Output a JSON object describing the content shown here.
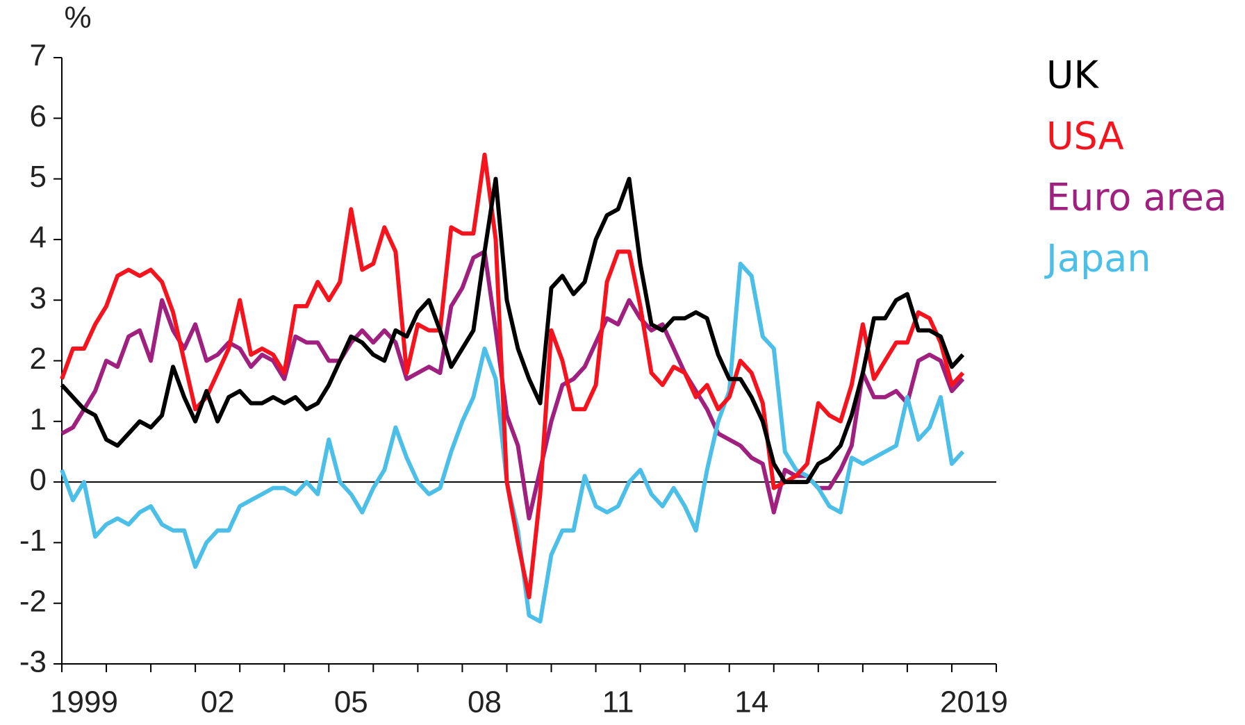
{
  "chart_data": {
    "type": "line",
    "y_unit": "%",
    "x": [
      1999,
      1999.25,
      1999.5,
      1999.75,
      2000,
      2000.25,
      2000.5,
      2000.75,
      2001,
      2001.25,
      2001.5,
      2001.75,
      2002,
      2002.25,
      2002.5,
      2002.75,
      2003,
      2003.25,
      2003.5,
      2003.75,
      2004,
      2004.25,
      2004.5,
      2004.75,
      2005,
      2005.25,
      2005.5,
      2005.75,
      2006,
      2006.25,
      2006.5,
      2006.75,
      2007,
      2007.25,
      2007.5,
      2007.75,
      2008,
      2008.25,
      2008.5,
      2008.75,
      2009,
      2009.25,
      2009.5,
      2009.75,
      2010,
      2010.25,
      2010.5,
      2010.75,
      2011,
      2011.25,
      2011.5,
      2011.75,
      2012,
      2012.25,
      2012.5,
      2012.75,
      2013,
      2013.25,
      2013.5,
      2013.75,
      2014,
      2014.25,
      2014.5,
      2014.75,
      2015,
      2015.25,
      2015.5,
      2015.75,
      2016,
      2016.25,
      2016.5,
      2016.75,
      2017,
      2017.25,
      2017.5,
      2017.75,
      2018,
      2018.25,
      2018.5,
      2018.75,
      2019,
      2019.25
    ],
    "series": [
      {
        "name": "UK",
        "color": "#000000",
        "values": [
          1.6,
          1.4,
          1.2,
          1.1,
          0.7,
          0.6,
          0.8,
          1.0,
          0.9,
          1.1,
          1.9,
          1.4,
          1.0,
          1.5,
          1.0,
          1.4,
          1.5,
          1.3,
          1.3,
          1.4,
          1.3,
          1.4,
          1.2,
          1.3,
          1.6,
          2.0,
          2.4,
          2.3,
          2.1,
          2.0,
          2.5,
          2.4,
          2.8,
          3.0,
          2.5,
          1.9,
          2.2,
          2.5,
          3.8,
          5.0,
          3.0,
          2.2,
          1.7,
          1.3,
          3.2,
          3.4,
          3.1,
          3.3,
          4.0,
          4.4,
          4.5,
          5.0,
          3.6,
          2.6,
          2.5,
          2.7,
          2.7,
          2.8,
          2.7,
          2.1,
          1.7,
          1.7,
          1.4,
          1.0,
          0.3,
          0.0,
          0.0,
          0.0,
          0.3,
          0.4,
          0.6,
          1.1,
          1.8,
          2.7,
          2.7,
          3.0,
          3.1,
          2.5,
          2.5,
          2.4,
          1.9,
          2.1
        ]
      },
      {
        "name": "USA",
        "color": "#f5141e",
        "values": [
          1.7,
          2.2,
          2.2,
          2.6,
          2.9,
          3.4,
          3.5,
          3.4,
          3.5,
          3.3,
          2.8,
          2.0,
          1.2,
          1.4,
          1.8,
          2.2,
          3.0,
          2.1,
          2.2,
          2.1,
          1.8,
          2.9,
          2.9,
          3.3,
          3.0,
          3.3,
          4.5,
          3.5,
          3.6,
          4.2,
          3.8,
          1.8,
          2.6,
          2.5,
          2.5,
          4.2,
          4.1,
          4.1,
          5.4,
          4.0,
          0.0,
          -1.0,
          -1.9,
          -0.2,
          2.5,
          2.0,
          1.2,
          1.2,
          1.6,
          3.3,
          3.8,
          3.8,
          2.9,
          1.8,
          1.6,
          1.9,
          1.8,
          1.4,
          1.6,
          1.2,
          1.4,
          2.0,
          1.8,
          1.3,
          -0.1,
          0.0,
          0.1,
          0.3,
          1.3,
          1.1,
          1.0,
          1.6,
          2.6,
          1.7,
          2.0,
          2.3,
          2.3,
          2.8,
          2.7,
          2.3,
          1.6,
          1.8
        ]
      },
      {
        "name": "Euro area",
        "color": "#a0207f",
        "values": [
          0.8,
          0.9,
          1.2,
          1.5,
          2.0,
          1.9,
          2.4,
          2.5,
          2.0,
          3.0,
          2.5,
          2.2,
          2.6,
          2.0,
          2.1,
          2.3,
          2.2,
          1.9,
          2.1,
          2.0,
          1.7,
          2.4,
          2.3,
          2.3,
          2.0,
          2.0,
          2.3,
          2.5,
          2.3,
          2.5,
          2.3,
          1.7,
          1.8,
          1.9,
          1.8,
          2.9,
          3.2,
          3.7,
          3.8,
          2.5,
          1.1,
          0.6,
          -0.6,
          0.2,
          1.0,
          1.6,
          1.7,
          1.9,
          2.3,
          2.7,
          2.6,
          3.0,
          2.7,
          2.5,
          2.6,
          2.2,
          1.8,
          1.5,
          1.2,
          0.8,
          0.7,
          0.6,
          0.4,
          0.3,
          -0.5,
          0.2,
          0.1,
          0.1,
          -0.1,
          -0.1,
          0.2,
          0.6,
          1.8,
          1.4,
          1.4,
          1.5,
          1.3,
          2.0,
          2.1,
          2.0,
          1.5,
          1.7
        ]
      },
      {
        "name": "Japan",
        "color": "#4bbfe8",
        "values": [
          0.2,
          -0.3,
          0.0,
          -0.9,
          -0.7,
          -0.6,
          -0.7,
          -0.5,
          -0.4,
          -0.7,
          -0.8,
          -0.8,
          -1.4,
          -1.0,
          -0.8,
          -0.8,
          -0.4,
          -0.3,
          -0.2,
          -0.1,
          -0.1,
          -0.2,
          0.0,
          -0.2,
          0.7,
          0.0,
          -0.2,
          -0.5,
          -0.1,
          0.2,
          0.9,
          0.4,
          0.0,
          -0.2,
          -0.1,
          0.5,
          1.0,
          1.4,
          2.2,
          1.7,
          0.0,
          -0.8,
          -2.2,
          -2.3,
          -1.2,
          -0.8,
          -0.8,
          0.1,
          -0.4,
          -0.5,
          -0.4,
          0.0,
          0.2,
          -0.2,
          -0.4,
          -0.1,
          -0.4,
          -0.8,
          0.2,
          1.0,
          1.5,
          3.6,
          3.4,
          2.4,
          2.2,
          0.5,
          0.2,
          0.1,
          -0.1,
          -0.4,
          -0.5,
          0.4,
          0.3,
          0.4,
          0.5,
          0.6,
          1.4,
          0.7,
          0.9,
          1.4,
          0.3,
          0.5
        ]
      }
    ],
    "xlim": [
      1999,
      2020
    ],
    "xticks": [
      {
        "value": 1999.5,
        "label": "1999"
      },
      {
        "value": 2002.5,
        "label": "02"
      },
      {
        "value": 2005.5,
        "label": "05"
      },
      {
        "value": 2008.5,
        "label": "08"
      },
      {
        "value": 2011.5,
        "label": "11"
      },
      {
        "value": 2014.5,
        "label": "14"
      },
      {
        "value": 2019.5,
        "label": "2019"
      }
    ],
    "minor_xticks": [
      1999,
      2000,
      2001,
      2002,
      2003,
      2004,
      2005,
      2006,
      2007,
      2008,
      2009,
      2010,
      2011,
      2012,
      2013,
      2014,
      2015,
      2016,
      2017,
      2018,
      2019,
      2020
    ],
    "ylim": [
      -3,
      7
    ],
    "yticks": [
      -3,
      -2,
      -1,
      0,
      1,
      2,
      3,
      4,
      5,
      6,
      7
    ],
    "reference_line": 0,
    "legend": "right"
  }
}
